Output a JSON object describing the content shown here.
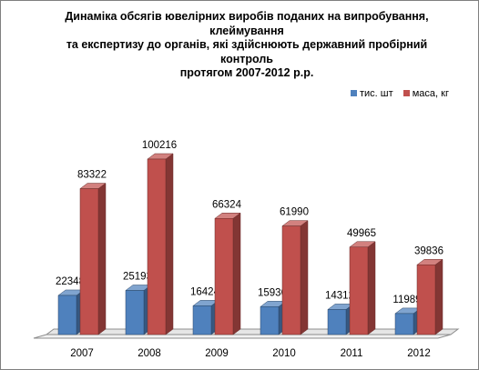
{
  "chart_data": {
    "type": "bar",
    "title": [
      "Динаміка обсягів ювелірних виробів поданих на випробування, клеймування",
      "та експертизу до органів, які здійснюють державний пробірний контроль",
      "протягом 2007-2012 р.р."
    ],
    "categories": [
      "2007",
      "2008",
      "2009",
      "2010",
      "2011",
      "2012"
    ],
    "series": [
      {
        "name": "тис. шт",
        "color": "#4f81bd",
        "values": [
          22348,
          25193,
          16424,
          15930,
          14312,
          11989
        ]
      },
      {
        "name": "маса, кг",
        "color": "#c0504d",
        "values": [
          83322,
          100216,
          66324,
          61990,
          49965,
          39836
        ]
      }
    ],
    "legend_position": "top-right",
    "grid": false,
    "style": "3d-column"
  }
}
